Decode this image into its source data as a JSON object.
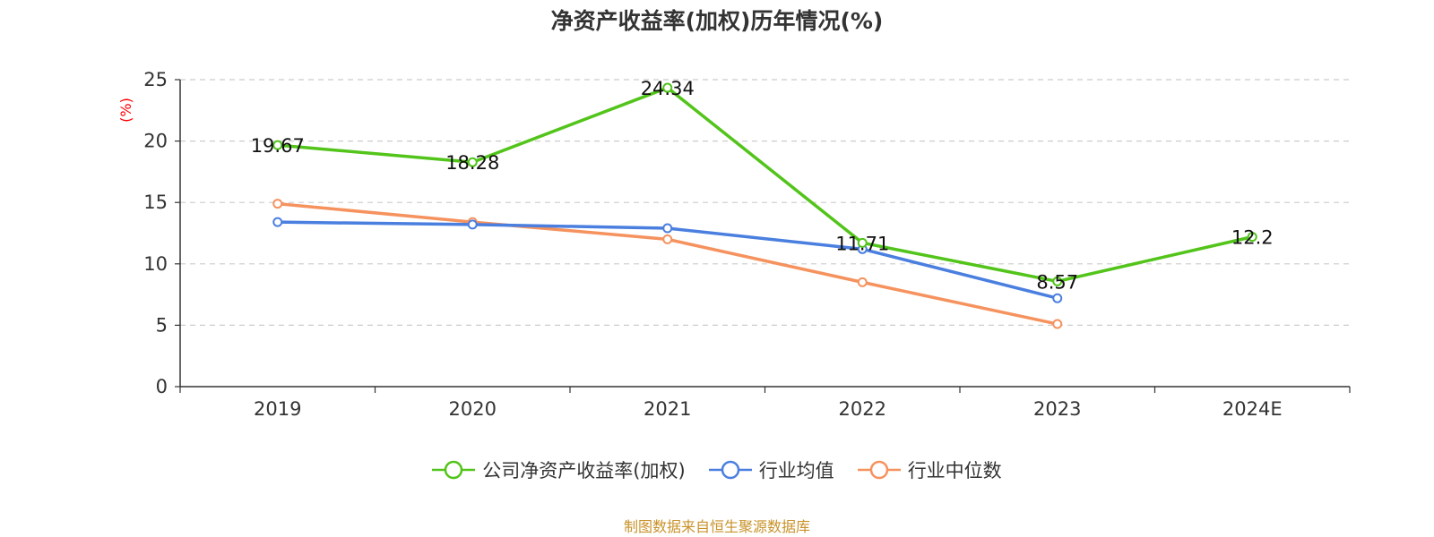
{
  "chart_data": {
    "type": "line",
    "title": "净资产收益率(加权)历年情况(%)",
    "ylabel": "(%)",
    "xlabel": "",
    "categories": [
      "2019",
      "2020",
      "2021",
      "2022",
      "2023",
      "2024E"
    ],
    "ylim": [
      0,
      25
    ],
    "yticks": [
      0,
      5,
      10,
      15,
      20,
      25
    ],
    "grid": true,
    "legend_position": "bottom",
    "series": [
      {
        "name": "公司净资产收益率(加权)",
        "color": "#52c41a",
        "values": [
          19.67,
          18.28,
          24.34,
          11.71,
          8.57,
          12.2
        ],
        "labels": [
          "19.67",
          "18.28",
          "24.34",
          "11.71",
          "8.57",
          "12.2"
        ],
        "show_labels": true
      },
      {
        "name": "行业均值",
        "color": "#4a7fe0",
        "values": [
          13.4,
          13.2,
          12.9,
          11.2,
          7.2,
          null
        ],
        "show_labels": false
      },
      {
        "name": "行业中位数",
        "color": "#f5925e",
        "values": [
          14.9,
          13.4,
          12.0,
          8.5,
          5.1,
          null
        ],
        "show_labels": false
      }
    ]
  },
  "footer": {
    "source": "制图数据来自恒生聚源数据库"
  },
  "colors": {
    "ylabel": "#ff0000",
    "footer": "#c8922a"
  }
}
